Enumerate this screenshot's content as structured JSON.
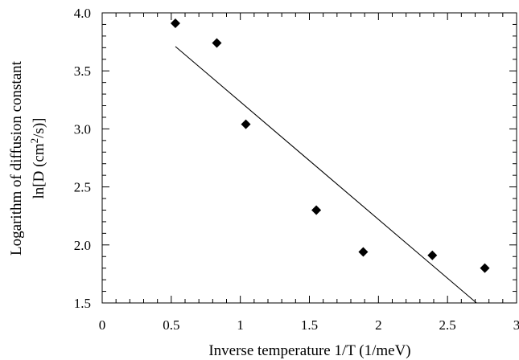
{
  "chart_data": {
    "type": "scatter",
    "xlabel": "Inverse temperature 1/T (1/meV)",
    "ylabel_line1": "Logarithm of diffusion constant",
    "ylabel_line2_prefix": "ln[D (cm",
    "ylabel_line2_sup": "2",
    "ylabel_line2_suffix": "/s)]",
    "xlim": [
      0,
      3
    ],
    "ylim": [
      1.5,
      4.0
    ],
    "x_ticks": [
      0,
      0.5,
      1,
      1.5,
      2,
      2.5,
      3
    ],
    "x_tick_labels": [
      "0",
      "0.5",
      "1",
      "1.5",
      "2",
      "2.5",
      "3"
    ],
    "y_ticks": [
      1.5,
      2.0,
      2.5,
      3.0,
      3.5,
      4.0
    ],
    "y_tick_labels": [
      "1.5",
      "2.0",
      "2.5",
      "3.0",
      "3.5",
      "4.0"
    ],
    "grid": false,
    "marker": "diamond",
    "color": "#000000",
    "series": [
      {
        "x": [
          0.53,
          0.83,
          1.04,
          1.55,
          1.89,
          2.39,
          2.77
        ],
        "y": [
          3.91,
          3.74,
          3.04,
          2.3,
          1.94,
          1.91,
          1.8
        ]
      }
    ],
    "fit_line": {
      "x": [
        0.53,
        2.71
      ],
      "y": [
        3.71,
        1.5
      ]
    }
  }
}
